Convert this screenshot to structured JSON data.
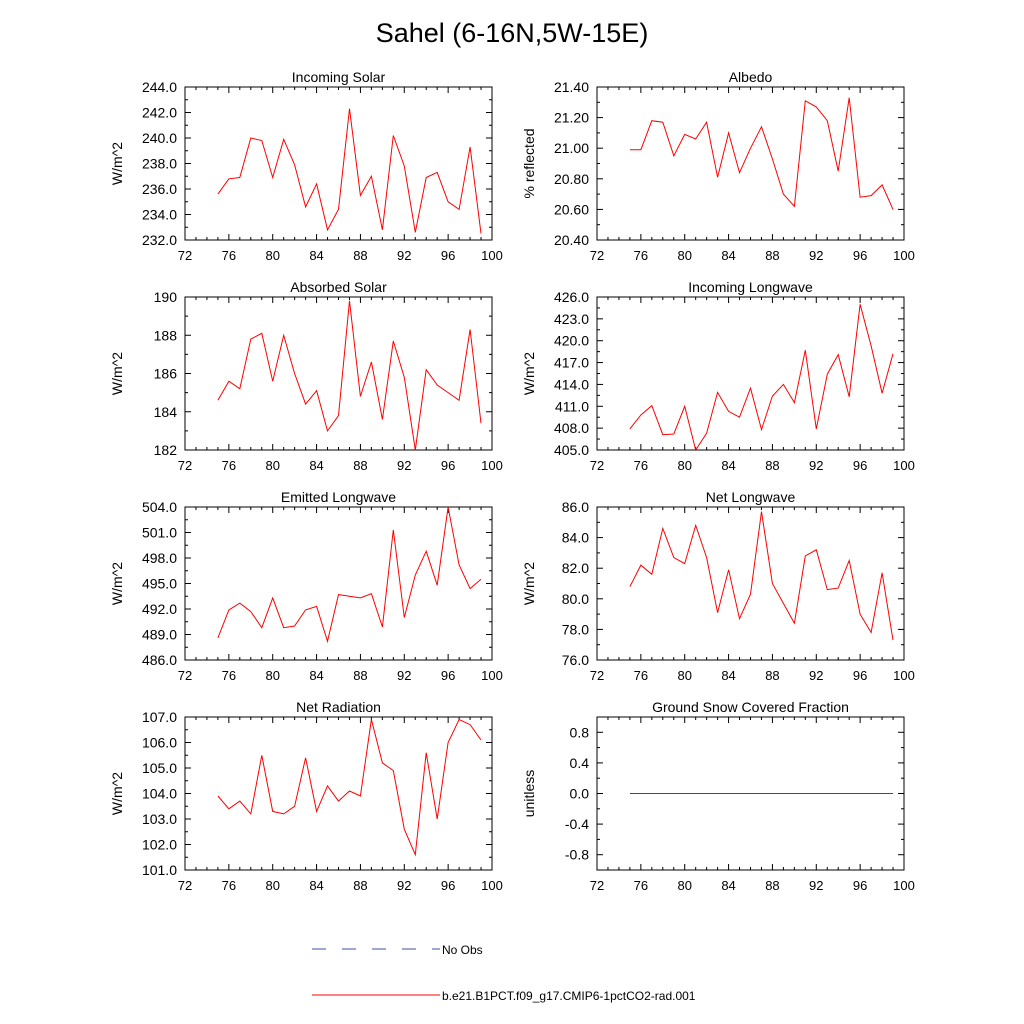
{
  "figure_title": "Sahel (6-16N,5W-15E)",
  "legend": {
    "entries": [
      {
        "label": "No Obs",
        "color": "#3b4fa0",
        "style": "dashed"
      },
      {
        "label": "b.e21.B1PCT.f09_g17.CMIP6-1pctCO2-rad.001",
        "color": "#ff0000",
        "style": "solid"
      }
    ]
  },
  "chart_data": [
    {
      "type": "line",
      "title": "Incoming Solar",
      "ylabel": "W/m^2",
      "xlim": [
        72,
        100
      ],
      "ylim": [
        232,
        244
      ],
      "xticks": [
        72,
        76,
        80,
        84,
        88,
        92,
        96,
        100
      ],
      "yticks": [
        "232.0",
        "234.0",
        "236.0",
        "238.0",
        "240.0",
        "242.0",
        "244.0"
      ],
      "series": [
        {
          "color": "#ff0000",
          "x": [
            75,
            76,
            77,
            78,
            79,
            80,
            81,
            82,
            83,
            84,
            85,
            86,
            87,
            88,
            89,
            90,
            91,
            92,
            93,
            94,
            95,
            96,
            97,
            98,
            99
          ],
          "y": [
            235.6,
            236.8,
            236.9,
            240.0,
            239.8,
            236.9,
            239.9,
            237.9,
            234.6,
            236.4,
            232.8,
            234.4,
            242.3,
            235.5,
            237.0,
            232.8,
            240.2,
            237.8,
            232.6,
            236.9,
            237.3,
            235.0,
            234.4,
            239.3,
            232.5
          ]
        }
      ]
    },
    {
      "type": "line",
      "title": "Albedo",
      "ylabel": "% reflected",
      "xlim": [
        72,
        100
      ],
      "ylim": [
        20.4,
        21.4
      ],
      "xticks": [
        72,
        76,
        80,
        84,
        88,
        92,
        96,
        100
      ],
      "yticks": [
        "20.40",
        "20.60",
        "20.80",
        "21.00",
        "21.20",
        "21.40"
      ],
      "series": [
        {
          "color": "#ff0000",
          "x": [
            75,
            76,
            77,
            78,
            79,
            80,
            81,
            82,
            83,
            84,
            85,
            86,
            87,
            88,
            89,
            90,
            91,
            92,
            93,
            94,
            95,
            96,
            97,
            98,
            99
          ],
          "y": [
            20.99,
            20.99,
            21.18,
            21.17,
            20.95,
            21.09,
            21.06,
            21.17,
            20.81,
            21.1,
            20.84,
            21.0,
            21.14,
            20.93,
            20.7,
            20.62,
            21.31,
            21.27,
            21.18,
            20.85,
            21.33,
            20.68,
            20.69,
            20.76,
            20.6
          ]
        }
      ]
    },
    {
      "type": "line",
      "title": "Absorbed Solar",
      "ylabel": "W/m^2",
      "xlim": [
        72,
        100
      ],
      "ylim": [
        182,
        190
      ],
      "xticks": [
        72,
        76,
        80,
        84,
        88,
        92,
        96,
        100
      ],
      "yticks": [
        "182",
        "184",
        "186",
        "188",
        "190"
      ],
      "series": [
        {
          "color": "#ff0000",
          "x": [
            75,
            76,
            77,
            78,
            79,
            80,
            81,
            82,
            83,
            84,
            85,
            86,
            87,
            88,
            89,
            90,
            91,
            92,
            93,
            94,
            95,
            96,
            97,
            98,
            99
          ],
          "y": [
            184.6,
            185.6,
            185.2,
            187.8,
            188.1,
            185.6,
            188.0,
            186.0,
            184.4,
            185.1,
            183.0,
            183.8,
            189.8,
            184.8,
            186.6,
            183.6,
            187.7,
            185.8,
            182.0,
            186.2,
            185.4,
            185.0,
            184.6,
            188.3,
            183.4
          ]
        }
      ]
    },
    {
      "type": "line",
      "title": "Incoming Longwave",
      "ylabel": "W/m^2",
      "xlim": [
        72,
        100
      ],
      "ylim": [
        405,
        426
      ],
      "xticks": [
        72,
        76,
        80,
        84,
        88,
        92,
        96,
        100
      ],
      "yticks": [
        "405.0",
        "408.0",
        "411.0",
        "414.0",
        "417.0",
        "420.0",
        "423.0",
        "426.0"
      ],
      "series": [
        {
          "color": "#ff0000",
          "x": [
            75,
            76,
            77,
            78,
            79,
            80,
            81,
            82,
            83,
            84,
            85,
            86,
            87,
            88,
            89,
            90,
            91,
            92,
            93,
            94,
            95,
            96,
            97,
            98,
            99
          ],
          "y": [
            407.9,
            409.8,
            411.1,
            407.1,
            407.2,
            411.0,
            405.0,
            407.3,
            412.9,
            410.3,
            409.5,
            413.5,
            407.8,
            412.4,
            414.0,
            411.5,
            418.7,
            407.9,
            415.4,
            418.1,
            412.3,
            425.0,
            419.3,
            412.8,
            418.2
          ]
        }
      ]
    },
    {
      "type": "line",
      "title": "Emitted Longwave",
      "ylabel": "W/m^2",
      "xlim": [
        72,
        100
      ],
      "ylim": [
        486,
        504
      ],
      "xticks": [
        72,
        76,
        80,
        84,
        88,
        92,
        96,
        100
      ],
      "yticks": [
        "486.0",
        "489.0",
        "492.0",
        "495.0",
        "498.0",
        "501.0",
        "504.0"
      ],
      "series": [
        {
          "color": "#ff0000",
          "x": [
            75,
            76,
            77,
            78,
            79,
            80,
            81,
            82,
            83,
            84,
            85,
            86,
            87,
            88,
            89,
            90,
            91,
            92,
            93,
            94,
            95,
            96,
            97,
            98,
            99
          ],
          "y": [
            488.6,
            491.9,
            492.7,
            491.7,
            489.8,
            493.3,
            489.8,
            490.0,
            491.9,
            492.3,
            488.2,
            493.7,
            493.5,
            493.3,
            493.8,
            489.9,
            501.3,
            491.0,
            496.0,
            498.8,
            494.8,
            504.0,
            497.2,
            494.4,
            495.5
          ]
        }
      ]
    },
    {
      "type": "line",
      "title": "Net Longwave",
      "ylabel": "W/m^2",
      "xlim": [
        72,
        100
      ],
      "ylim": [
        76,
        86
      ],
      "xticks": [
        72,
        76,
        80,
        84,
        88,
        92,
        96,
        100
      ],
      "yticks": [
        "76.0",
        "78.0",
        "80.0",
        "82.0",
        "84.0",
        "86.0"
      ],
      "series": [
        {
          "color": "#ff0000",
          "x": [
            75,
            76,
            77,
            78,
            79,
            80,
            81,
            82,
            83,
            84,
            85,
            86,
            87,
            88,
            89,
            90,
            91,
            92,
            93,
            94,
            95,
            96,
            97,
            98,
            99
          ],
          "y": [
            80.8,
            82.2,
            81.6,
            84.6,
            82.7,
            82.3,
            84.8,
            82.7,
            79.1,
            81.9,
            78.7,
            80.3,
            85.7,
            81.0,
            79.7,
            78.4,
            82.8,
            83.2,
            80.6,
            80.7,
            82.5,
            79.0,
            77.8,
            81.7,
            77.3
          ]
        }
      ]
    },
    {
      "type": "line",
      "title": "Net Radiation",
      "ylabel": "W/m^2",
      "xlim": [
        72,
        100
      ],
      "ylim": [
        101,
        107
      ],
      "xticks": [
        72,
        76,
        80,
        84,
        88,
        92,
        96,
        100
      ],
      "yticks": [
        "101.0",
        "102.0",
        "103.0",
        "104.0",
        "105.0",
        "106.0",
        "107.0"
      ],
      "series": [
        {
          "color": "#ff0000",
          "x": [
            75,
            76,
            77,
            78,
            79,
            80,
            81,
            82,
            83,
            84,
            85,
            86,
            87,
            88,
            89,
            90,
            91,
            92,
            93,
            94,
            95,
            96,
            97,
            98,
            99
          ],
          "y": [
            103.9,
            103.4,
            103.7,
            103.2,
            105.5,
            103.3,
            103.2,
            103.5,
            105.4,
            103.3,
            104.3,
            103.7,
            104.1,
            103.9,
            106.9,
            105.2,
            104.9,
            102.6,
            101.6,
            105.6,
            103.0,
            106.0,
            106.9,
            106.7,
            106.1
          ]
        }
      ]
    },
    {
      "type": "line",
      "title": "Ground Snow Covered Fraction",
      "ylabel": "unitless",
      "xlim": [
        72,
        100
      ],
      "ylim": [
        -1.0,
        1.0
      ],
      "xticks": [
        72,
        76,
        80,
        84,
        88,
        92,
        96,
        100
      ],
      "yticks": [
        "-0.8",
        "-0.4",
        "0.0",
        "0.4",
        "0.8"
      ],
      "yticks_values": [
        -0.8,
        -0.4,
        0.0,
        0.4,
        0.8
      ],
      "series": [
        {
          "color": "#ff0000",
          "x": [
            75,
            99
          ],
          "y": [
            0,
            0
          ]
        }
      ]
    }
  ]
}
